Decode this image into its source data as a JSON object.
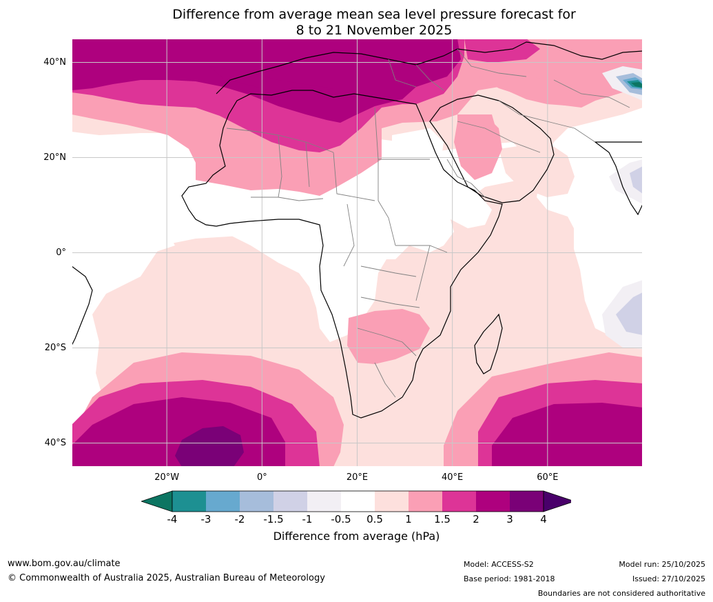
{
  "title": {
    "line1": "Difference from average mean sea level pressure forecast for",
    "line2": "8 to 21 November 2025"
  },
  "map": {
    "lat_labels": [
      "40°N",
      "20°N",
      "0°",
      "20°S",
      "40°S"
    ],
    "lon_labels": [
      "20°W",
      "0°",
      "20°E",
      "40°E",
      "60°E"
    ],
    "lat_values": [
      40,
      20,
      0,
      -20,
      -40
    ],
    "lon_values": [
      -20,
      0,
      20,
      40,
      60
    ],
    "extent": {
      "lon_min": -40,
      "lon_max": 80,
      "lat_min": -45,
      "lat_max": 45
    },
    "colors": {
      "land_border": "#000000",
      "country_border": "#808080",
      "grid": "#c8c8c8"
    }
  },
  "colorbar": {
    "tick_labels": [
      "-4",
      "-3",
      "-2",
      "-1.5",
      "-1",
      "-0.5",
      "0.5",
      "1",
      "1.5",
      "2",
      "3",
      "4"
    ],
    "colors": [
      "#0c7562",
      "#1d9092",
      "#67a9cf",
      "#a6bddb",
      "#d0d1e6",
      "#f2eff4",
      "#ffffff",
      "#fde0dd",
      "#fa9fb5",
      "#dd3497",
      "#ae017e",
      "#7a0177",
      "#49006a"
    ],
    "label": "Difference from average (hPa)"
  },
  "footer": {
    "website": "www.bom.gov.au/climate",
    "copyright": "© Commonwealth of Australia 2025, Australian Bureau of Meteorology",
    "model": "Model: ACCESS-S2",
    "base_period": "Base period: 1981-2018",
    "model_run": "Model run: 25/10/2025",
    "issued": "Issued: 27/10/2025",
    "disclaimer": "Boundaries are not considered authoritative"
  }
}
